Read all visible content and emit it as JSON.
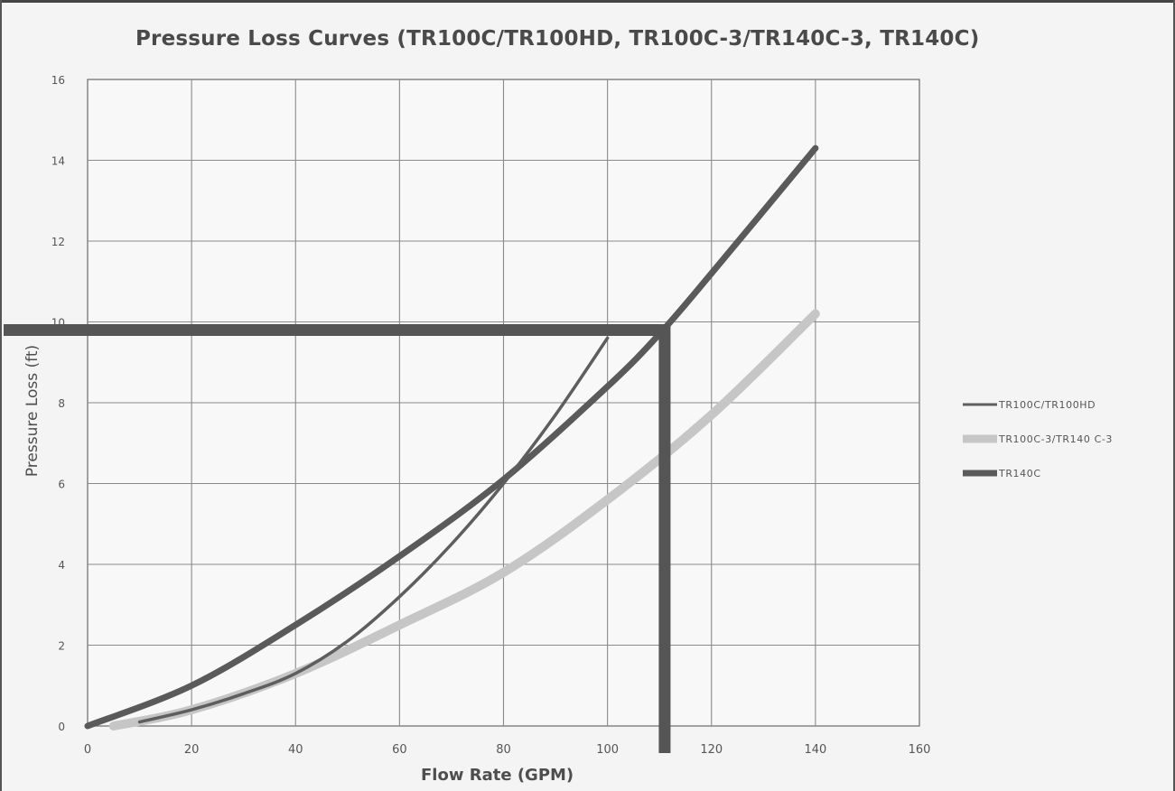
{
  "chart_data": {
    "type": "line",
    "title": "Pressure Loss Curves (TR100C/TR100HD, TR100C-3/TR140C-3, TR140C)",
    "xlabel": "Flow Rate (GPM)",
    "ylabel": "Pressure Loss (ft)",
    "xlim": [
      0,
      160
    ],
    "ylim": [
      0,
      16
    ],
    "x_ticks": [
      "0",
      "20",
      "40",
      "60",
      "80",
      "100",
      "120",
      "140",
      "160"
    ],
    "y_ticks": [
      "0",
      "2",
      "4",
      "6",
      "8",
      "10",
      "12",
      "14",
      "16"
    ],
    "grid": true,
    "legend_position": "right",
    "series": [
      {
        "name": "TR100C/TR100HD",
        "color": "#5e5e5e",
        "x": [
          10,
          20,
          30,
          40,
          50,
          60,
          70,
          80,
          90,
          100
        ],
        "y": [
          0.1,
          0.4,
          0.8,
          1.3,
          2.1,
          3.2,
          4.5,
          6.0,
          7.7,
          9.6
        ]
      },
      {
        "name": "TR100C-3/TR140 C-3",
        "color": "#c6c6c6",
        "x": [
          5,
          20,
          40,
          60,
          80,
          100,
          120,
          140
        ],
        "y": [
          0.0,
          0.4,
          1.3,
          2.5,
          3.8,
          5.6,
          7.7,
          10.2
        ]
      },
      {
        "name": "TR140C",
        "color": "#5a5a5a",
        "x": [
          0,
          20,
          40,
          60,
          80,
          100,
          110,
          120,
          140
        ],
        "y": [
          0.0,
          1.0,
          2.5,
          4.2,
          6.1,
          8.4,
          9.7,
          11.2,
          14.3
        ]
      }
    ],
    "annotations": [
      {
        "type": "horizontal_line",
        "y": 9.8,
        "x_from": 0,
        "x_to": 111,
        "color": "#555555"
      },
      {
        "type": "vertical_line",
        "x": 111,
        "y_from": 9.8,
        "y_to": 0,
        "color": "#555555"
      }
    ]
  }
}
